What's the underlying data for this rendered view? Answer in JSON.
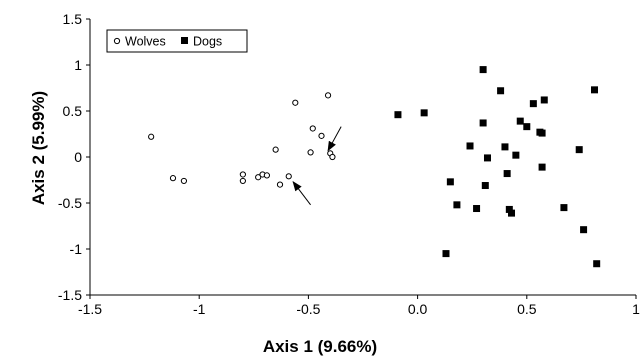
{
  "chart_data": {
    "type": "scatter",
    "xlabel": "Axis 1 (9.66%)",
    "ylabel": "Axis 2 (5.99%)",
    "xlim": [
      -1.5,
      1
    ],
    "ylim": [
      -1.5,
      1.5
    ],
    "x_ticks": [
      "-1.5",
      "-1",
      "-0.5",
      "0.0",
      "0.5",
      "1"
    ],
    "y_ticks": [
      "1.5",
      "1",
      "0.5",
      "0",
      "-0.5",
      "-1",
      "-1.5"
    ],
    "x_tick_values": [
      -1.5,
      -1,
      -0.5,
      0.0,
      0.5,
      1
    ],
    "y_tick_values": [
      1.5,
      1,
      0.5,
      0,
      -0.5,
      -1,
      -1.5
    ],
    "grid": false,
    "legend": {
      "position": "top-left",
      "entries": [
        "Wolves",
        "Dogs"
      ]
    },
    "series": [
      {
        "name": "Wolves",
        "marker": "open-circle",
        "points": [
          [
            -1.22,
            0.22
          ],
          [
            -1.12,
            -0.23
          ],
          [
            -1.07,
            -0.26
          ],
          [
            -0.8,
            -0.19
          ],
          [
            -0.8,
            -0.26
          ],
          [
            -0.73,
            -0.22
          ],
          [
            -0.71,
            -0.19
          ],
          [
            -0.69,
            -0.2
          ],
          [
            -0.65,
            0.08
          ],
          [
            -0.63,
            -0.3
          ],
          [
            -0.59,
            -0.21
          ],
          [
            -0.56,
            0.59
          ],
          [
            -0.49,
            0.05
          ],
          [
            -0.48,
            0.31
          ],
          [
            -0.44,
            0.23
          ],
          [
            -0.41,
            0.67
          ],
          [
            -0.4,
            0.04
          ],
          [
            -0.39,
            0.0
          ]
        ]
      },
      {
        "name": "Dogs",
        "marker": "filled-square",
        "points": [
          [
            -0.09,
            0.46
          ],
          [
            0.03,
            0.48
          ],
          [
            0.13,
            -1.05
          ],
          [
            0.15,
            -0.27
          ],
          [
            0.18,
            -0.52
          ],
          [
            0.24,
            0.12
          ],
          [
            0.27,
            -0.56
          ],
          [
            0.3,
            0.95
          ],
          [
            0.3,
            0.37
          ],
          [
            0.31,
            -0.31
          ],
          [
            0.32,
            -0.01
          ],
          [
            0.38,
            0.72
          ],
          [
            0.4,
            0.11
          ],
          [
            0.41,
            -0.18
          ],
          [
            0.42,
            -0.57
          ],
          [
            0.43,
            -0.61
          ],
          [
            0.45,
            0.02
          ],
          [
            0.47,
            0.39
          ],
          [
            0.5,
            0.33
          ],
          [
            0.53,
            0.58
          ],
          [
            0.56,
            0.27
          ],
          [
            0.57,
            0.26
          ],
          [
            0.57,
            -0.11
          ],
          [
            0.58,
            0.62
          ],
          [
            0.67,
            -0.55
          ],
          [
            0.74,
            0.08
          ],
          [
            0.76,
            -0.79
          ],
          [
            0.81,
            0.73
          ],
          [
            0.82,
            -1.16
          ]
        ]
      }
    ],
    "annotations": [
      {
        "type": "arrow",
        "from": [
          -0.35,
          0.33
        ],
        "to": [
          -0.41,
          0.07
        ]
      },
      {
        "type": "arrow",
        "from": [
          -0.49,
          -0.52
        ],
        "to": [
          -0.57,
          -0.27
        ]
      }
    ]
  }
}
